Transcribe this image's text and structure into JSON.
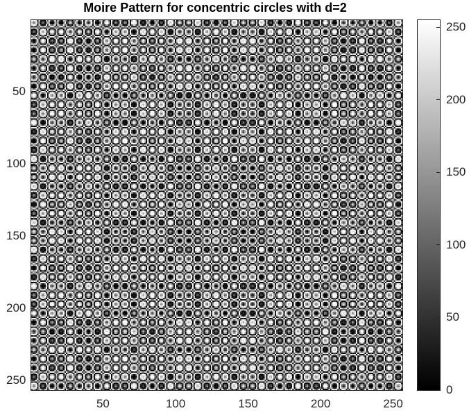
{
  "chart_data": {
    "type": "heatmap",
    "title": "Moire Pattern for concentric circles with d=2",
    "xlabel": "",
    "ylabel": "",
    "pattern": "concentric circles, d=2",
    "grid_size": 256,
    "center": [
      128,
      128
    ],
    "x_range": [
      0.5,
      256.5
    ],
    "y_range": [
      0.5,
      256.5
    ],
    "y_direction": "reversed",
    "x_ticks": [
      50,
      100,
      150,
      200,
      250
    ],
    "y_ticks": [
      50,
      100,
      150,
      200,
      250
    ],
    "colormap": "gray",
    "clim": [
      0,
      255
    ],
    "colorbar": {
      "location": "right",
      "ticks": [
        0,
        50,
        100,
        150,
        200,
        250
      ]
    }
  }
}
